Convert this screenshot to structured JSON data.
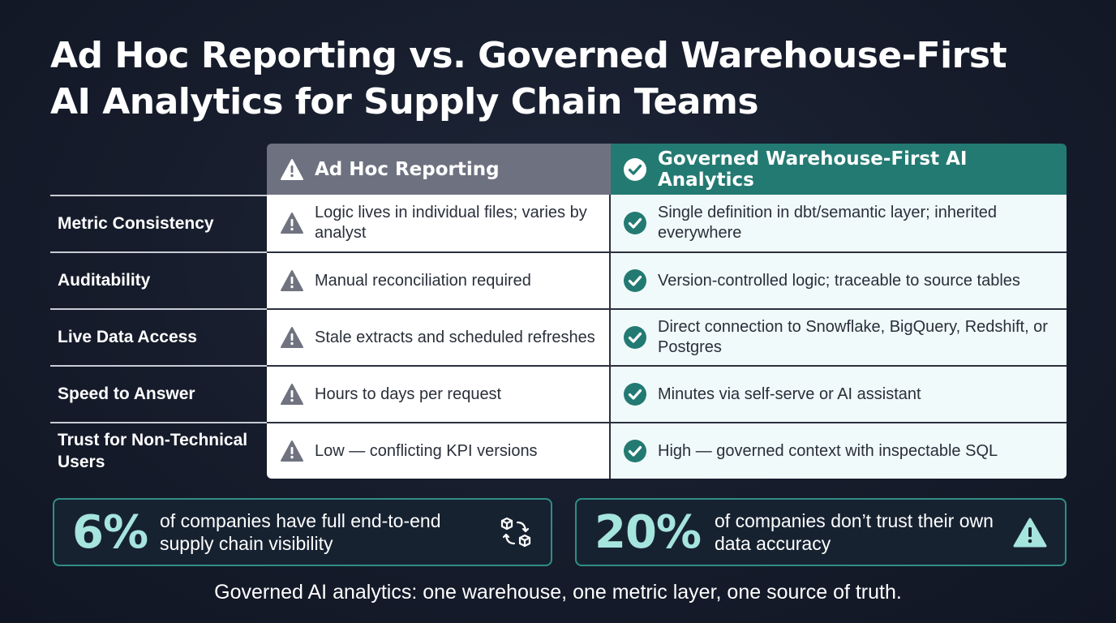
{
  "title": {
    "line1": "Ad Hoc Reporting vs. Governed Warehouse-First",
    "line2": "AI Analytics for Supply Chain Teams"
  },
  "columns": {
    "left": {
      "label": "Ad Hoc Reporting",
      "icon": "warning-icon",
      "color": "#6e7180"
    },
    "right": {
      "label": "Governed Warehouse-First AI Analytics",
      "icon": "check-circle-icon",
      "color": "#237a72"
    }
  },
  "rows": [
    {
      "label": "Metric Consistency",
      "left": "Logic lives in individual files; varies by analyst",
      "right": "Single definition in dbt/semantic layer; inherited everywhere"
    },
    {
      "label": "Auditability",
      "left": "Manual reconciliation required",
      "right": "Version-controlled logic; traceable to source tables"
    },
    {
      "label": "Live Data Access",
      "left": "Stale extracts and scheduled refreshes",
      "right": "Direct connection to Snowflake, BigQuery, Redshift, or Postgres"
    },
    {
      "label": "Speed to Answer",
      "left": "Hours to days per request",
      "right": "Minutes via self-serve or AI assistant"
    },
    {
      "label": "Trust for Non-Technical Users",
      "left": "Low — conflicting KPI versions",
      "right": "High — governed context with inspectable SQL"
    }
  ],
  "stats": [
    {
      "value": "6%",
      "text": "of companies have full end-to-end supply chain visibility",
      "icon": "supply-chain-cycle-icon"
    },
    {
      "value": "20%",
      "text": "of companies don’t trust their own data accuracy",
      "icon": "warning-icon"
    }
  ],
  "footer": "Governed AI analytics: one warehouse, one metric layer, one source of truth.",
  "colors": {
    "background": "#161c2b",
    "accent_teal": "#2f8e86",
    "stat_number": "#a6e4de",
    "warning_grey": "#6e7180",
    "check_teal": "#237a72"
  }
}
